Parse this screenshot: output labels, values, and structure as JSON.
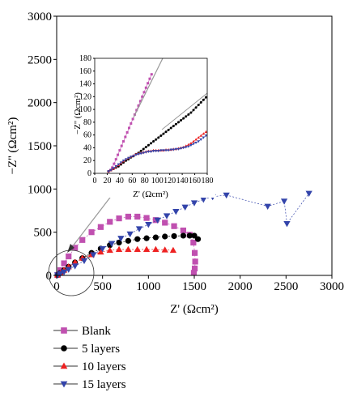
{
  "chart_data": [
    {
      "type": "scatter",
      "panel": "main",
      "xlabel": "Z' (Ωcm²)",
      "ylabel": "−Z'' (Ωcm²)",
      "xlim": [
        0,
        3000
      ],
      "ylim": [
        0,
        3000
      ],
      "xticks": [
        "0",
        "500",
        "1000",
        "1500",
        "2000",
        "2500",
        "3000"
      ],
      "yticks": [
        "0",
        "500",
        "1000",
        "1500",
        "2000",
        "2500",
        "3000"
      ],
      "grid": false,
      "legend_position": "below-left",
      "series": [
        {
          "name": "Blank",
          "color": "#c050b0",
          "marker": "square",
          "x": [
            10,
            40,
            80,
            130,
            200,
            280,
            380,
            480,
            580,
            680,
            780,
            880,
            980,
            1080,
            1180,
            1280,
            1380,
            1450,
            1490,
            1505,
            1510,
            1505,
            1495
          ],
          "y": [
            5,
            60,
            140,
            220,
            320,
            410,
            500,
            560,
            620,
            660,
            680,
            680,
            665,
            640,
            610,
            570,
            520,
            470,
            380,
            260,
            160,
            80,
            30
          ]
        },
        {
          "name": "5 layers",
          "color": "#000000",
          "marker": "circle",
          "x": [
            10,
            40,
            80,
            130,
            200,
            280,
            380,
            480,
            580,
            680,
            780,
            880,
            980,
            1080,
            1180,
            1280,
            1380,
            1450,
            1500,
            1540
          ],
          "y": [
            5,
            30,
            60,
            100,
            150,
            200,
            260,
            310,
            350,
            380,
            400,
            420,
            430,
            440,
            450,
            455,
            460,
            460,
            460,
            420
          ]
        },
        {
          "name": "10 layers",
          "color": "#ee2222",
          "marker": "triangle-up",
          "x": [
            10,
            40,
            80,
            130,
            200,
            280,
            380,
            480,
            580,
            680,
            780,
            880,
            980,
            1080,
            1180,
            1270
          ],
          "y": [
            5,
            30,
            60,
            100,
            150,
            200,
            240,
            270,
            290,
            300,
            300,
            300,
            300,
            300,
            295,
            290
          ]
        },
        {
          "name": "15 layers",
          "color": "#3344aa",
          "marker": "triangle-down",
          "x": [
            10,
            40,
            80,
            130,
            200,
            300,
            400,
            500,
            600,
            700,
            800,
            900,
            1000,
            1100,
            1200,
            1300,
            1400,
            1500,
            1600,
            1700,
            1850,
            2300,
            2480,
            2510,
            2750
          ],
          "y": [
            5,
            20,
            40,
            70,
            110,
            170,
            240,
            310,
            370,
            430,
            480,
            540,
            590,
            640,
            690,
            740,
            790,
            840,
            880,
            910,
            930,
            800,
            860,
            600,
            950
          ]
        }
      ]
    },
    {
      "type": "scatter",
      "panel": "inset",
      "xlabel": "Z' (Ωcm²)",
      "ylabel": "−Z'' (Ωcm²)",
      "xlim": [
        0,
        180
      ],
      "ylim": [
        0,
        180
      ],
      "xticks": [
        "0",
        "20",
        "40",
        "60",
        "80",
        "100",
        "120",
        "140",
        "160",
        "180"
      ],
      "yticks": [
        "0",
        "20",
        "40",
        "60",
        "80",
        "100",
        "120",
        "140",
        "160",
        "180"
      ],
      "grid": false,
      "series": [
        {
          "name": "Blank",
          "color": "#c050b0",
          "marker": "square",
          "x": [
            22,
            25,
            28,
            31,
            34,
            37,
            40,
            43,
            46,
            49,
            52,
            55,
            58,
            61,
            64,
            67,
            70,
            73,
            76,
            79,
            82,
            85,
            88,
            91
          ],
          "y": [
            3,
            5,
            9,
            15,
            22,
            29,
            36,
            43,
            50,
            57,
            64,
            71,
            78,
            85,
            92,
            99,
            106,
            113,
            120,
            127,
            134,
            141,
            148,
            155
          ]
        },
        {
          "name": "5 layers",
          "color": "#000000",
          "marker": "circle",
          "x": [
            22,
            26,
            30,
            34,
            38,
            42,
            46,
            50,
            54,
            58,
            62,
            66,
            70,
            74,
            78,
            82,
            86,
            90,
            94,
            98,
            102,
            106,
            110,
            114,
            118,
            122,
            126,
            130,
            134,
            138,
            142,
            146,
            150,
            154,
            158,
            162,
            166,
            170,
            174,
            178
          ],
          "y": [
            3,
            5,
            7,
            9,
            11,
            14,
            17,
            20,
            22,
            25,
            27,
            30,
            32,
            35,
            38,
            41,
            44,
            47,
            50,
            53,
            56,
            59,
            62,
            65,
            68,
            71,
            74,
            77,
            80,
            83,
            86,
            89,
            92,
            95,
            99,
            103,
            107,
            111,
            115,
            119
          ]
        },
        {
          "name": "10 layers",
          "color": "#ee2222",
          "marker": "triangle-up",
          "x": [
            22,
            26,
            30,
            34,
            38,
            42,
            46,
            50,
            54,
            58,
            62,
            66,
            70,
            74,
            78,
            82,
            86,
            90,
            94,
            98,
            102,
            106,
            110,
            114,
            118,
            122,
            126,
            130,
            134,
            138,
            142,
            146,
            150,
            154,
            158,
            162,
            166,
            170,
            174,
            178
          ],
          "y": [
            3,
            5,
            7,
            10,
            13,
            16,
            19,
            22,
            24,
            26,
            28,
            30,
            31,
            32,
            33,
            34,
            35,
            35,
            36,
            36,
            36,
            36,
            36,
            37,
            37,
            37,
            38,
            38,
            39,
            40,
            41,
            43,
            45,
            47,
            50,
            53,
            56,
            59,
            62,
            65
          ]
        },
        {
          "name": "15 layers",
          "color": "#3344aa",
          "marker": "triangle-down",
          "x": [
            22,
            26,
            30,
            34,
            38,
            42,
            46,
            50,
            54,
            58,
            62,
            66,
            70,
            74,
            78,
            82,
            86,
            90,
            94,
            98,
            102,
            106,
            110,
            114,
            118,
            122,
            126,
            130,
            134,
            138,
            142,
            146,
            150,
            154,
            158,
            162,
            166,
            170,
            174,
            178
          ],
          "y": [
            3,
            5,
            8,
            11,
            14,
            17,
            20,
            22,
            24,
            26,
            27,
            29,
            30,
            31,
            32,
            33,
            34,
            34,
            35,
            35,
            35,
            36,
            36,
            36,
            36,
            37,
            37,
            38,
            38,
            39,
            40,
            41,
            42,
            44,
            46,
            48,
            50,
            53,
            56,
            59
          ]
        }
      ]
    }
  ]
}
